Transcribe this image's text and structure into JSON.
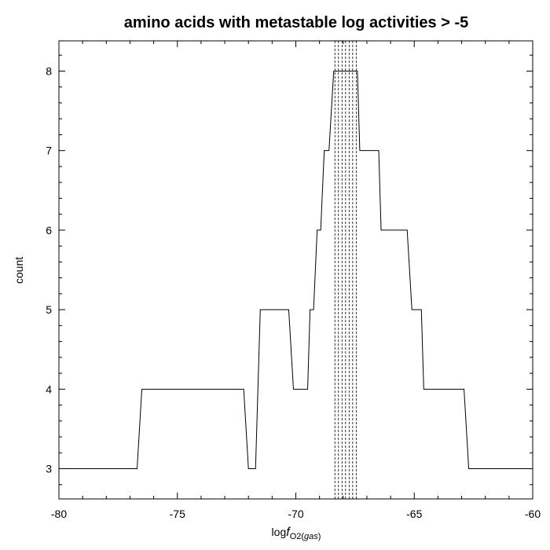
{
  "chart_data": {
    "type": "line",
    "title": "amino acids with metastable log activities > -5",
    "xlabel_prefix": "log",
    "xlabel_f": "f",
    "xlabel_subscript": "O2(",
    "xlabel_subscript_italic": "gas",
    "xlabel_subscript_close": ")",
    "ylabel": "count",
    "xlim": [
      -80,
      -60
    ],
    "ylim": [
      2.62,
      8.38
    ],
    "xticks": [
      -80,
      -75,
      -70,
      -65,
      -60
    ],
    "xtick_labels": [
      "-80",
      "-75",
      "-70",
      "-65",
      "-60"
    ],
    "yticks": [
      3,
      4,
      5,
      6,
      7,
      8
    ],
    "ytick_labels": [
      "3",
      "4",
      "5",
      "6",
      "7",
      "8"
    ],
    "grid": false,
    "series": [
      {
        "x": [
          -80,
          -76.7,
          -76.5,
          -72.2,
          -72.0,
          -71.7,
          -71.5,
          -70.3,
          -70.1,
          -69.5,
          -69.4,
          -69.25,
          -69.1,
          -68.95,
          -68.8,
          -68.6,
          -68.4,
          -67.4,
          -67.3,
          -66.5,
          -66.4,
          -65.3,
          -65.1,
          -64.7,
          -64.6,
          -62.9,
          -62.7,
          -60
        ],
        "y": [
          3,
          3,
          4,
          4,
          3,
          3,
          5,
          5,
          4,
          4,
          5,
          5,
          6,
          6,
          7,
          7,
          8,
          8,
          7,
          7,
          6,
          6,
          5,
          5,
          4,
          4,
          3,
          3
        ]
      }
    ],
    "vlines": {
      "style": "dashed",
      "x": [
        -68.35,
        -68.2,
        -68.05,
        -67.9,
        -67.75,
        -67.6,
        -67.45
      ]
    }
  }
}
